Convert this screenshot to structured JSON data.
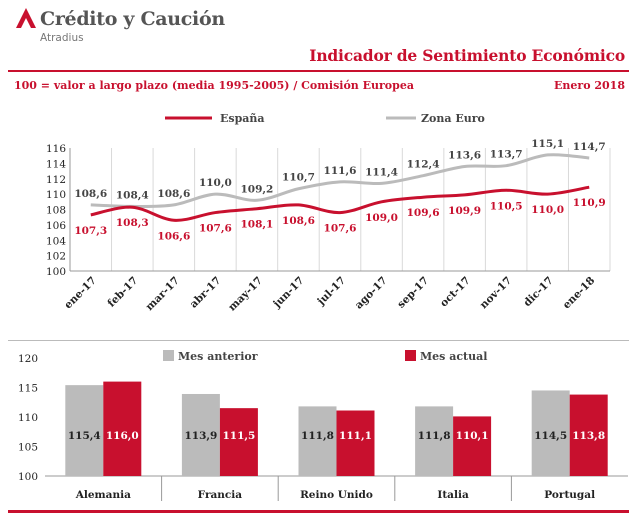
{
  "brand": {
    "name": "Crédito y Caución",
    "sub": "Atradius"
  },
  "header": {
    "title": "Indicador de Sentimiento Económico",
    "subtitle": "100 = valor a largo plazo (media 1995-2005) / Comisión Europea",
    "date": "Enero 2018"
  },
  "colors": {
    "spain": "#c8102e",
    "euro": "#bbbbbb",
    "accent": "#c8102e"
  },
  "chart_data": [
    {
      "type": "line",
      "x": [
        "ene-17",
        "feb-17",
        "mar-17",
        "abr-17",
        "may-17",
        "jun-17",
        "jul-17",
        "ago-17",
        "sep-17",
        "oct-17",
        "nov-17",
        "dic-17",
        "ene-18"
      ],
      "series": [
        {
          "name": "España",
          "values": [
            107.3,
            108.3,
            106.6,
            107.6,
            108.1,
            108.6,
            107.6,
            109.0,
            109.6,
            109.9,
            110.5,
            110.0,
            110.9
          ],
          "labels": [
            "107,3",
            "108,3",
            "106,6",
            "107,6",
            "108,1",
            "108,6",
            "107,6",
            "109,0",
            "109,6",
            "109,9",
            "110,5",
            "110,0",
            "110,9"
          ]
        },
        {
          "name": "Zona Euro",
          "values": [
            108.6,
            108.4,
            108.6,
            110.0,
            109.2,
            110.7,
            111.6,
            111.4,
            112.4,
            113.6,
            113.7,
            115.1,
            114.7
          ],
          "labels": [
            "108,6",
            "108,4",
            "108,6",
            "110,0",
            "109,2",
            "110,7",
            "111,6",
            "111,4",
            "112,4",
            "113,6",
            "113,7",
            "115,1",
            "114,7"
          ]
        }
      ],
      "ylim": [
        100,
        116
      ],
      "yticks": [
        "100",
        "102",
        "104",
        "106",
        "108",
        "110",
        "112",
        "114",
        "116"
      ],
      "grid": "vertical",
      "legend": "top"
    },
    {
      "type": "bar",
      "categories": [
        "Alemania",
        "Francia",
        "Reino Unido",
        "Italia",
        "Portugal"
      ],
      "series": [
        {
          "name": "Mes anterior",
          "values": [
            115.4,
            113.9,
            111.8,
            111.8,
            114.5
          ],
          "labels": [
            "115,4",
            "113,9",
            "111,8",
            "111,8",
            "114,5"
          ]
        },
        {
          "name": "Mes actual",
          "values": [
            116.0,
            111.5,
            111.1,
            110.1,
            113.8
          ],
          "labels": [
            "116,0",
            "111,5",
            "111,1",
            "110,1",
            "113,8"
          ]
        }
      ],
      "ylim": [
        100,
        120
      ],
      "yticks": [
        "100",
        "105",
        "110",
        "115",
        "120"
      ],
      "legend": "top"
    }
  ]
}
